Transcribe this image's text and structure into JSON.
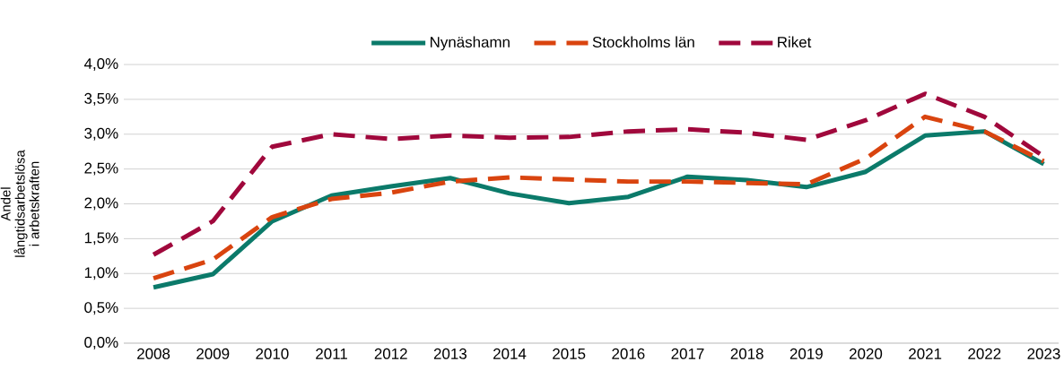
{
  "chart_data": {
    "type": "line",
    "ylabel": "Andel långtidsarbetslösa i arbetskraften",
    "categories": [
      "2008",
      "2009",
      "2010",
      "2011",
      "2012",
      "2013",
      "2014",
      "2015",
      "2016",
      "2017",
      "2018",
      "2019",
      "2020",
      "2021",
      "2022",
      "2023"
    ],
    "series": [
      {
        "name": "Nynäshamn",
        "color": "#0b7a6a",
        "line_style": "solid",
        "values": [
          0.8,
          0.99,
          1.75,
          2.12,
          2.25,
          2.37,
          2.15,
          2.01,
          2.1,
          2.39,
          2.34,
          2.24,
          2.46,
          2.98,
          3.04,
          2.57
        ]
      },
      {
        "name": "Stockholms län",
        "color": "#d9440f",
        "line_style": "dashed",
        "values": [
          0.93,
          1.2,
          1.81,
          2.07,
          2.16,
          2.32,
          2.38,
          2.35,
          2.32,
          2.32,
          2.3,
          2.28,
          2.65,
          3.25,
          3.04,
          2.61
        ]
      },
      {
        "name": "Riket",
        "color": "#a0083c",
        "line_style": "dashed",
        "values": [
          1.27,
          1.75,
          2.82,
          3.0,
          2.93,
          2.98,
          2.95,
          2.96,
          3.04,
          3.07,
          3.02,
          2.92,
          3.2,
          3.58,
          3.25,
          2.68
        ]
      }
    ],
    "ylim": [
      0,
      4
    ],
    "yticks": [
      {
        "value": 0,
        "label": "0,0%"
      },
      {
        "value": 0.5,
        "label": "0,5%"
      },
      {
        "value": 1,
        "label": "1,0%"
      },
      {
        "value": 1.5,
        "label": "1,5%"
      },
      {
        "value": 2,
        "label": "2,0%"
      },
      {
        "value": 2.5,
        "label": "2,5%"
      },
      {
        "value": 3,
        "label": "3,0%"
      },
      {
        "value": 3.5,
        "label": "3,5%"
      },
      {
        "value": 4,
        "label": "4,0%"
      }
    ],
    "grid": "y",
    "legend": "top",
    "marker": "none"
  }
}
